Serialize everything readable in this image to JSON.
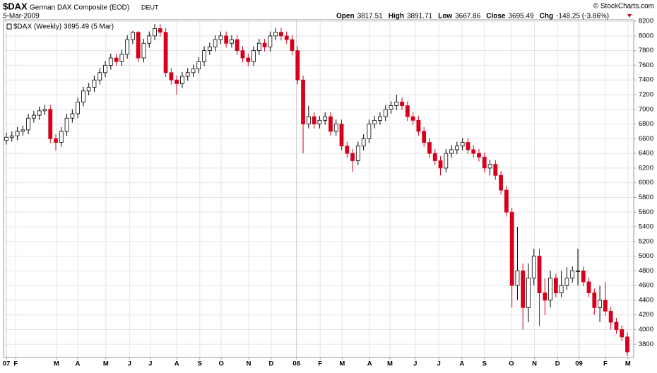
{
  "chart_data": {
    "type": "candlestick",
    "symbol": "$DAX",
    "title": "German DAX Composite (EOD)",
    "exchange": "DEUT",
    "date": "5-Mar-2009",
    "source": "© StockCharts.com",
    "stats": [
      {
        "label": "Open",
        "value": 3817.51
      },
      {
        "label": "High",
        "value": 3891.71
      },
      {
        "label": "Low",
        "value": 3667.86
      },
      {
        "label": "Close",
        "value": 3695.49
      },
      {
        "label": "Chg",
        "value": "-148.25 (-3.86%)"
      }
    ],
    "legend": "$DAX (Weekly) 3695.49 (5 Mar)",
    "up_color": "#ffffff",
    "down_color": "#d6001c",
    "grid": true,
    "ylim": [
      3620,
      8220
    ],
    "yticks": [
      3800,
      4000,
      4200,
      4400,
      4600,
      4800,
      5000,
      5200,
      5400,
      5600,
      5800,
      6000,
      6200,
      6400,
      6600,
      6800,
      7000,
      7200,
      7400,
      7600,
      7800,
      8000,
      8200
    ],
    "xlim": [
      -0.5,
      113.5
    ],
    "xticks": [
      {
        "value": 0,
        "label": "07"
      },
      {
        "value": 1.7,
        "label": "F"
      },
      {
        "value": 9.1,
        "label": "M"
      },
      {
        "value": 13,
        "label": "A"
      },
      {
        "value": 18.1,
        "label": "M"
      },
      {
        "value": 22.4,
        "label": "J"
      },
      {
        "value": 26.2,
        "label": "J"
      },
      {
        "value": 31,
        "label": "A"
      },
      {
        "value": 35.2,
        "label": "S"
      },
      {
        "value": 39.1,
        "label": "O"
      },
      {
        "value": 44.1,
        "label": "N"
      },
      {
        "value": 48.2,
        "label": "D"
      },
      {
        "value": 52.8,
        "label": "08"
      },
      {
        "value": 57.1,
        "label": "F"
      },
      {
        "value": 61.1,
        "label": "M"
      },
      {
        "value": 66.1,
        "label": "A"
      },
      {
        "value": 69.8,
        "label": "M"
      },
      {
        "value": 74.4,
        "label": "J"
      },
      {
        "value": 78.7,
        "label": "J"
      },
      {
        "value": 82.9,
        "label": "A"
      },
      {
        "value": 87,
        "label": "S"
      },
      {
        "value": 91.9,
        "label": "O"
      },
      {
        "value": 96.1,
        "label": "N"
      },
      {
        "value": 100.3,
        "label": "D"
      },
      {
        "value": 104.2,
        "label": "09"
      },
      {
        "value": 109,
        "label": "F"
      },
      {
        "value": 113.1,
        "label": "M"
      }
    ],
    "open": [
      6580,
      6620,
      6640,
      6700,
      6720,
      6880,
      6920,
      6980,
      7000,
      6600,
      6550,
      6700,
      6880,
      6940,
      7100,
      7250,
      7300,
      7400,
      7500,
      7600,
      7700,
      7650,
      7750,
      7950,
      8050,
      7700,
      7900,
      8000,
      8100,
      8050,
      7500,
      7400,
      7350,
      7450,
      7500,
      7550,
      7650,
      7800,
      7850,
      7950,
      8000,
      7900,
      7950,
      7800,
      7700,
      7650,
      7800,
      7900,
      7850,
      8000,
      8050,
      8000,
      7950,
      7800,
      7400,
      6800,
      6900,
      6800,
      6850,
      6900,
      6700,
      6800,
      6500,
      6400,
      6300,
      6500,
      6600,
      6800,
      6850,
      6900,
      7000,
      7050,
      7100,
      7050,
      6900,
      6850,
      6700,
      6550,
      6400,
      6300,
      6200,
      6400,
      6450,
      6500,
      6550,
      6450,
      6400,
      6350,
      6200,
      6250,
      6100,
      5900,
      5600,
      4600,
      4800,
      4300,
      4700,
      5000,
      4500,
      4400,
      4700,
      4500,
      4600,
      4700,
      4800,
      4800,
      4650,
      4500,
      4300,
      4400,
      4250,
      4100,
      4000,
      3900
    ],
    "high": [
      6680,
      6700,
      6760,
      6780,
      6940,
      6980,
      7040,
      7060,
      7060,
      6660,
      6760,
      6940,
      7000,
      7160,
      7310,
      7360,
      7460,
      7560,
      7660,
      7760,
      7760,
      7810,
      8010,
      8110,
      8110,
      7960,
      8060,
      8160,
      8160,
      8110,
      7560,
      7460,
      7510,
      7560,
      7610,
      7710,
      7860,
      7910,
      8010,
      8060,
      8060,
      8010,
      8010,
      7860,
      7760,
      7860,
      7960,
      7960,
      8060,
      8110,
      8110,
      8060,
      8010,
      7860,
      7460,
      7050,
      6960,
      6910,
      6960,
      6960,
      6860,
      6860,
      6560,
      6460,
      6560,
      6660,
      6860,
      6910,
      6960,
      7060,
      7110,
      7200,
      7160,
      7110,
      6960,
      6910,
      6760,
      6610,
      6460,
      6360,
      6460,
      6510,
      6560,
      6610,
      6610,
      6510,
      6460,
      6410,
      6310,
      6310,
      6160,
      5960,
      5660,
      5400,
      4900,
      4900,
      5100,
      5100,
      4700,
      4800,
      4760,
      4800,
      4850,
      4860,
      5100,
      4860,
      4710,
      4560,
      4600,
      4650,
      4310,
      4160,
      4060,
      3960
    ],
    "low": [
      6520,
      6560,
      6580,
      6640,
      6660,
      6820,
      6860,
      6920,
      6540,
      6440,
      6490,
      6640,
      6820,
      6880,
      7040,
      7190,
      7240,
      7340,
      7440,
      7540,
      7590,
      7590,
      7690,
      7890,
      7640,
      7640,
      7840,
      7940,
      7990,
      7440,
      7340,
      7200,
      7290,
      7390,
      7440,
      7490,
      7590,
      7740,
      7790,
      7890,
      7840,
      7840,
      7740,
      7640,
      7590,
      7590,
      7740,
      7790,
      7790,
      7940,
      7940,
      7890,
      7740,
      7340,
      6400,
      6740,
      6740,
      6740,
      6790,
      6640,
      6640,
      6440,
      6340,
      6150,
      6240,
      6440,
      6540,
      6740,
      6790,
      6840,
      6940,
      6990,
      6990,
      6840,
      6790,
      6640,
      6490,
      6340,
      6240,
      6100,
      6140,
      6340,
      6390,
      6440,
      6390,
      6340,
      6290,
      6140,
      6100,
      6040,
      5840,
      5540,
      4300,
      4400,
      4000,
      4100,
      4600,
      4050,
      4200,
      4300,
      4440,
      4440,
      4540,
      4640,
      4600,
      4590,
      4440,
      4200,
      4100,
      4190,
      4000,
      3940,
      3840,
      3640
    ],
    "close": [
      6620,
      6640,
      6700,
      6720,
      6880,
      6920,
      6980,
      7000,
      6600,
      6550,
      6700,
      6880,
      6940,
      7100,
      7250,
      7300,
      7400,
      7500,
      7600,
      7700,
      7650,
      7750,
      7950,
      8050,
      7700,
      7900,
      8000,
      8100,
      8050,
      7500,
      7400,
      7350,
      7450,
      7500,
      7550,
      7650,
      7800,
      7850,
      7950,
      8000,
      7900,
      7950,
      7800,
      7700,
      7650,
      7800,
      7900,
      7850,
      8000,
      8050,
      8000,
      7950,
      7800,
      7400,
      6800,
      6900,
      6800,
      6850,
      6900,
      6700,
      6800,
      6500,
      6400,
      6300,
      6500,
      6600,
      6800,
      6850,
      6900,
      7000,
      7050,
      7100,
      7050,
      6900,
      6850,
      6700,
      6550,
      6400,
      6300,
      6200,
      6400,
      6450,
      6500,
      6550,
      6450,
      6400,
      6350,
      6200,
      6250,
      6100,
      5900,
      5600,
      4600,
      4800,
      4300,
      4700,
      5000,
      4500,
      4400,
      4700,
      4500,
      4600,
      4700,
      4800,
      4800,
      4650,
      4500,
      4300,
      4400,
      4250,
      4100,
      4000,
      3900,
      3695.49
    ]
  }
}
